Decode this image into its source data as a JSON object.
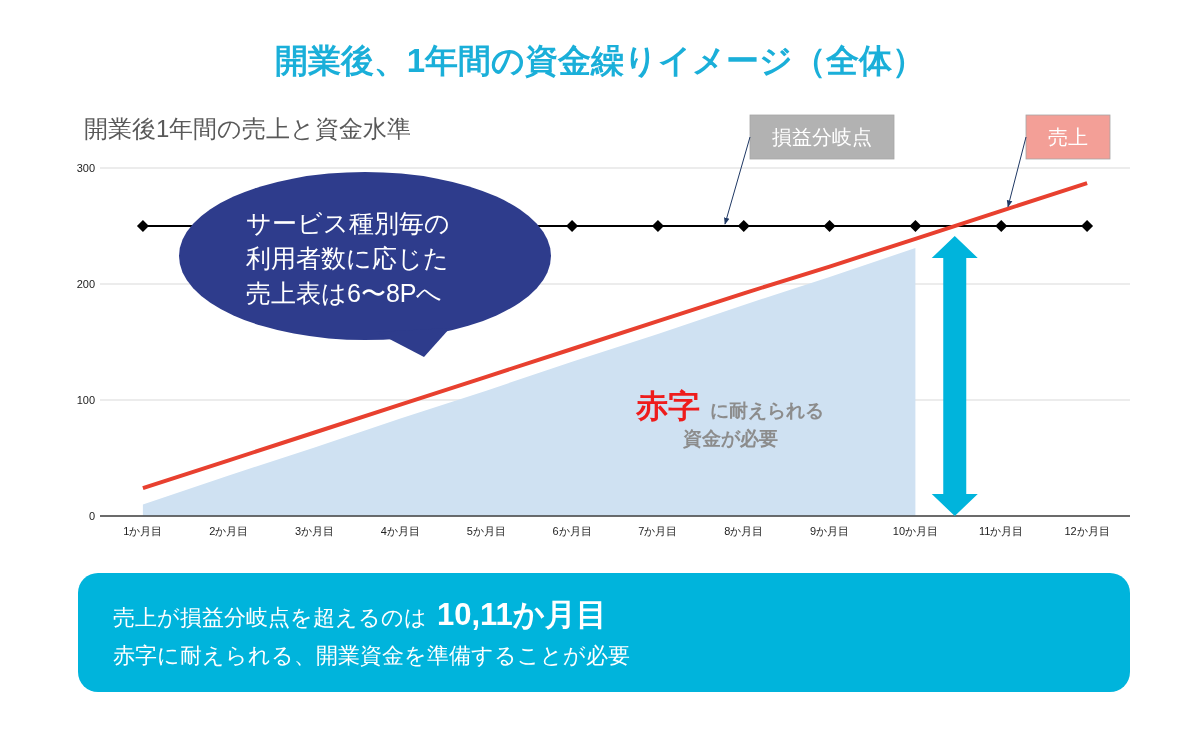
{
  "chart_data": {
    "type": "line",
    "title": "開業後、1年間の資金繰りイメージ（全体）",
    "subtitle": "開業後1年間の売上と資金水準",
    "categories": [
      "1か月目",
      "2か月目",
      "3か月目",
      "4か月目",
      "5か月目",
      "6か月目",
      "7か月目",
      "8か月目",
      "9か月目",
      "10か月目",
      "11か月目",
      "12か月目"
    ],
    "ylim": [
      0,
      300
    ],
    "yticks": [
      0,
      100,
      200,
      300
    ],
    "grid": "y",
    "series": [
      {
        "type": "area",
        "color": "#cfe1f2",
        "values": [
          10,
          35,
          59,
          84,
          108,
          133,
          157,
          182,
          206,
          231,
          null,
          null
        ]
      },
      {
        "name": "損益分岐点",
        "color": "#000000",
        "marker": "diamond",
        "values": [
          250,
          null,
          null,
          null,
          null,
          250,
          250,
          250,
          250,
          250,
          250,
          250
        ]
      },
      {
        "name": "売上",
        "color": "#e8402f",
        "values": [
          24,
          48,
          72,
          96,
          120,
          144,
          168,
          192,
          215,
          239,
          263,
          287
        ]
      }
    ],
    "annotations": [
      "サービス種別毎の利用者数に応じた売上表は6〜8Pへ",
      "赤字",
      "に耐えられる資金が必要",
      "売上が損益分岐点を超えるのは",
      "10,11か月目",
      "赤字に耐えられる、開業資金を準備することが必要"
    ]
  }
}
